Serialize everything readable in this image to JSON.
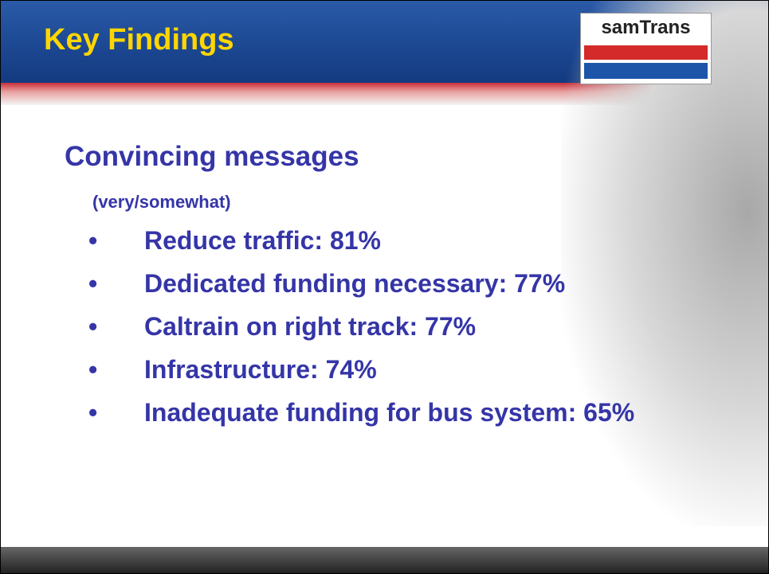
{
  "header": {
    "title": "Key Findings",
    "logo": "samTrans"
  },
  "body": {
    "heading": "Convincing messages",
    "note": "(very/somewhat)",
    "bullets": [
      "Reduce traffic: 81%",
      "Dedicated funding necessary: 77%",
      "Caltrain on right track: 77%",
      "Infrastructure: 74%",
      "Inadequate funding for bus system: 65%"
    ]
  }
}
